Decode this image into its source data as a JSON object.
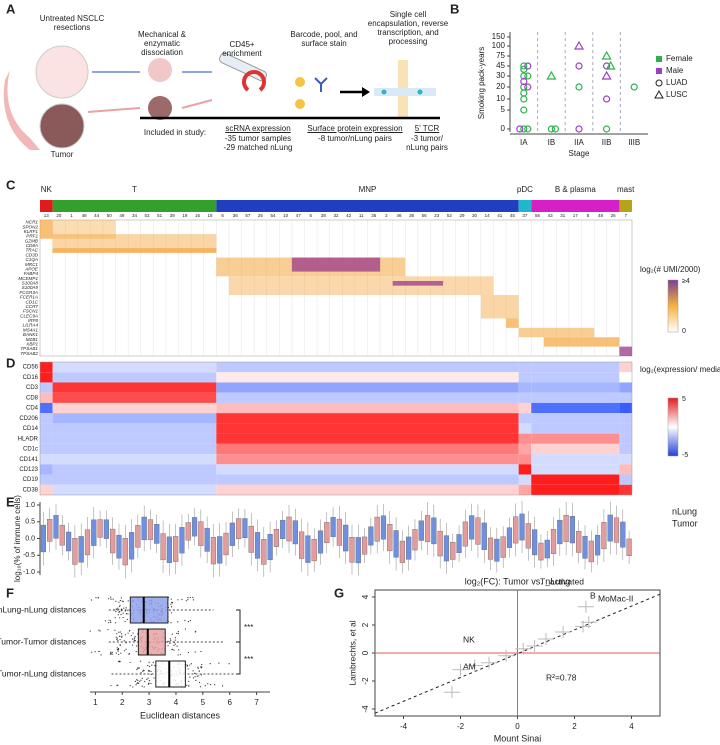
{
  "panels": {
    "A": {
      "label": "A",
      "steps": [
        "Untreated NSCLC resections",
        "Mechanical & enzymatic dissociation",
        "CD45+ enrichment",
        "Barcode, pool, and surface stain",
        "Single cell encapsulation, reverse transcription, and processing"
      ],
      "tumor": "Tumor",
      "included": "Included in study:",
      "studies": [
        {
          "title": "scRNA expression",
          "lines": [
            "-35 tumor samples",
            "-29 matched nLung"
          ]
        },
        {
          "title": "Surface protein expression",
          "lines": [
            "-8 tumor/nLung pairs"
          ]
        },
        {
          "title": "5' TCR",
          "lines": [
            "-3 tumor/",
            "nLung pairs"
          ]
        }
      ]
    },
    "B": {
      "label": "B",
      "ylabel": "Smoking pack-years",
      "xlabel": "Stage",
      "categories": [
        "IA",
        "IB",
        "IIA",
        "IIB",
        "IIIB"
      ],
      "yticks": [
        0,
        5,
        10,
        20,
        30,
        45,
        75,
        100,
        150
      ],
      "sex": [
        {
          "name": "Female",
          "color": "#2bb24c"
        },
        {
          "name": "Male",
          "color": "#9b3fc6"
        }
      ],
      "histology": [
        {
          "name": "LUAD",
          "shape": "circle"
        },
        {
          "name": "LUSC",
          "shape": "triangle"
        }
      ],
      "points": [
        {
          "stage": "IA",
          "value": 45,
          "sex": "Female",
          "histology": "LUAD"
        },
        {
          "stage": "IA",
          "value": 40,
          "sex": "Female",
          "histology": "LUAD"
        },
        {
          "stage": "IA",
          "value": 30,
          "sex": "Female",
          "histology": "LUAD"
        },
        {
          "stage": "IA",
          "value": 30,
          "sex": "Female",
          "histology": "LUAD"
        },
        {
          "stage": "IA",
          "value": 20,
          "sex": "Female",
          "histology": "LUAD"
        },
        {
          "stage": "IA",
          "value": 15,
          "sex": "Female",
          "histology": "LUAD"
        },
        {
          "stage": "IA",
          "value": 10,
          "sex": "Female",
          "histology": "LUAD"
        },
        {
          "stage": "IA",
          "value": 5,
          "sex": "Female",
          "histology": "LUAD"
        },
        {
          "stage": "IA",
          "value": 0,
          "sex": "Female",
          "histology": "LUAD"
        },
        {
          "stage": "IA",
          "value": 0,
          "sex": "Female",
          "histology": "LUAD"
        },
        {
          "stage": "IA",
          "value": 45,
          "sex": "Male",
          "histology": "LUAD"
        },
        {
          "stage": "IA",
          "value": 25,
          "sex": "Male",
          "histology": "LUAD"
        },
        {
          "stage": "IA",
          "value": 20,
          "sex": "Male",
          "histology": "LUAD"
        },
        {
          "stage": "IA",
          "value": 0,
          "sex": "Male",
          "histology": "LUAD"
        },
        {
          "stage": "IB",
          "value": 30,
          "sex": "Female",
          "histology": "LUSC"
        },
        {
          "stage": "IB",
          "value": 0,
          "sex": "Female",
          "histology": "LUAD"
        },
        {
          "stage": "IB",
          "value": 0,
          "sex": "Female",
          "histology": "LUAD"
        },
        {
          "stage": "IIA",
          "value": 100,
          "sex": "Male",
          "histology": "LUSC"
        },
        {
          "stage": "IIA",
          "value": 45,
          "sex": "Male",
          "histology": "LUAD"
        },
        {
          "stage": "IIA",
          "value": 20,
          "sex": "Female",
          "histology": "LUAD"
        },
        {
          "stage": "IIA",
          "value": 0,
          "sex": "Male",
          "histology": "LUAD"
        },
        {
          "stage": "IIB",
          "value": 75,
          "sex": "Female",
          "histology": "LUSC"
        },
        {
          "stage": "IIB",
          "value": 45,
          "sex": "Male",
          "histology": "LUAD"
        },
        {
          "stage": "IIB",
          "value": 45,
          "sex": "Female",
          "histology": "LUSC"
        },
        {
          "stage": "IIB",
          "value": 30,
          "sex": "Male",
          "histology": "LUSC"
        },
        {
          "stage": "IIB",
          "value": 10,
          "sex": "Male",
          "histology": "LUAD"
        },
        {
          "stage": "IIB",
          "value": 0,
          "sex": "Female",
          "histology": "LUAD"
        },
        {
          "stage": "IIIB",
          "value": 20,
          "sex": "Female",
          "histology": "LUAD"
        }
      ]
    },
    "C": {
      "label": "C",
      "groups": [
        {
          "name": "NK",
          "color": "#e31a1c",
          "clusters": [
            13
          ]
        },
        {
          "name": "T",
          "color": "#33a02c",
          "clusters": [
            20,
            1,
            48,
            44,
            50,
            49,
            34,
            53,
            51,
            39,
            19,
            16,
            18
          ]
        },
        {
          "name": "MNP",
          "color": "#1f3fbf",
          "clusters": [
            6,
            36,
            57,
            25,
            54,
            10,
            47,
            5,
            38,
            32,
            42,
            11,
            35,
            2,
            46,
            36,
            56,
            23,
            52,
            29,
            30,
            14,
            41,
            45
          ]
        },
        {
          "name": "pDC",
          "color": "#1fb8c8",
          "clusters": [
            37
          ]
        },
        {
          "name": "B & plasma",
          "color": "#d61fc6",
          "clusters": [
            56,
            43,
            31,
            17,
            8,
            48,
            26
          ]
        },
        {
          "name": "mast",
          "color": "#b8a21a",
          "clusters": [
            7
          ]
        }
      ],
      "genes": [
        "NCR1",
        "SPON2",
        "KLRF1",
        "PRF1",
        "GZMB",
        "CD8A",
        "TRAC",
        "CD3D",
        "C1QA",
        "MRC1",
        "APOE",
        "FABP4",
        "MCEMP1",
        "S100A8",
        "S100A9",
        "FCGR3A",
        "FCER1A",
        "CD1C",
        "CCR7",
        "FSCN1",
        "CLEC9A",
        "IRF8",
        "LILRA4",
        "MS4A1",
        "BANK1",
        "MZB1",
        "XBP1",
        "TPSAB1",
        "TPSAB2"
      ],
      "legend_title": "log₂(# UMI/2000)",
      "legend_max": "≥4",
      "legend_min": 0
    },
    "D": {
      "label": "D",
      "proteins": [
        "CD56",
        "CD16",
        "CD3",
        "CD8",
        "CD4",
        "CD206",
        "CD14",
        "HLADR",
        "CD1c",
        "CD141",
        "CD123",
        "CD19",
        "CD38"
      ],
      "legend_title": "log₂(expression/ median)",
      "legend_max": 5,
      "legend_min": -5
    },
    "E": {
      "label": "E",
      "ylabel": "log₁₀(% of immune cells)",
      "yticks": [
        {
          "value": 1,
          "label": "1.0"
        },
        {
          "value": 0.5,
          "label": "0.5"
        },
        {
          "value": 0,
          "label": "0.0"
        },
        {
          "value": -0.5,
          "label": "-0.5"
        },
        {
          "value": -1,
          "label": "-1.0"
        }
      ],
      "series": [
        {
          "name": "nLung",
          "color": "#6f8fe0"
        },
        {
          "name": "Tumor",
          "color": "#e59b9b"
        }
      ]
    },
    "F": {
      "label": "F",
      "xlabel": "Euclidean distances",
      "xticks": [
        1,
        2,
        3,
        4,
        5,
        6,
        7
      ],
      "xlim": [
        0.8,
        7.5
      ],
      "boxes": [
        {
          "label": "nLung-nLung distances",
          "color": "#8fa2ec",
          "text_color": "#6f8fe0",
          "whisker_low": 1.5,
          "q1": 2.3,
          "median": 2.8,
          "q3": 3.7,
          "whisker_high": 5.4
        },
        {
          "label": "Tumor-Tumor distances",
          "color": "#e8a3a3",
          "text_color": "#e08a8a",
          "whisker_low": 1.5,
          "q1": 2.6,
          "median": 2.95,
          "q3": 3.6,
          "whisker_high": 5.8
        },
        {
          "label": "Tumor-nLung distances",
          "color": "#ffffff",
          "text_color": "#222222",
          "whisker_low": 1.6,
          "q1": 3.25,
          "median": 3.75,
          "q3": 4.35,
          "whisker_high": 6.2
        }
      ],
      "significance": [
        "***",
        "***"
      ]
    },
    "G": {
      "label": "G",
      "title": "log₂(FC): Tumor vs. nLung",
      "xlabel": "Mount Sinai",
      "ylabel": "Lambrechts, et al",
      "xticks": [
        -4,
        -2,
        0,
        2,
        4
      ],
      "yticks": [
        -4,
        -2,
        0,
        2,
        4
      ],
      "xlim": [
        -5,
        5
      ],
      "ylim": [
        -4.5,
        4.5
      ],
      "annotations": [
        "T_activated",
        "B",
        "MoMac-II",
        "NK",
        "AM",
        "R²=0.78"
      ],
      "points": [
        {
          "x": 2.4,
          "y": 3.3
        },
        {
          "x": 2.5,
          "y": 2.2
        },
        {
          "x": 2.3,
          "y": 1.9
        },
        {
          "x": 1.6,
          "y": 1.5
        },
        {
          "x": 1.0,
          "y": 1.0
        },
        {
          "x": 0.6,
          "y": 0.5
        },
        {
          "x": 0.2,
          "y": 0.3
        },
        {
          "x": -0.4,
          "y": -0.2
        },
        {
          "x": -1.0,
          "y": -0.7
        },
        {
          "x": -1.5,
          "y": -0.9
        },
        {
          "x": -2.0,
          "y": -1.2
        },
        {
          "x": -2.3,
          "y": -2.8
        }
      ]
    }
  }
}
